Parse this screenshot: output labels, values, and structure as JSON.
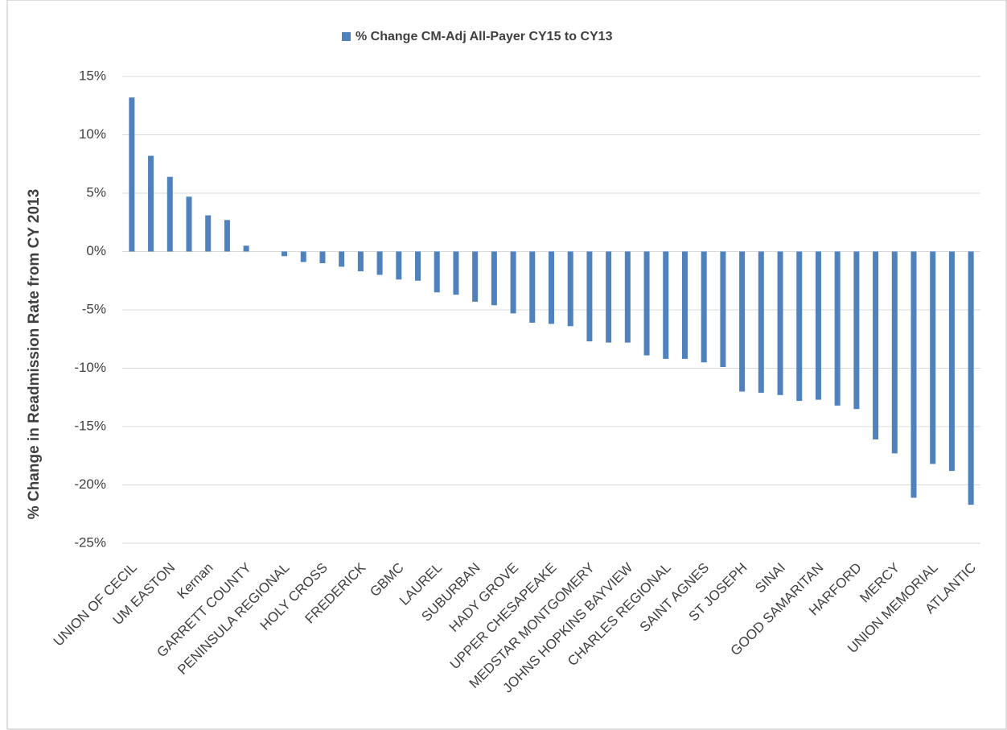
{
  "chart_data": {
    "type": "bar",
    "y_label": "% Change in Readmission Rate from CY 2013",
    "categories": [
      "UNION OF CECIL",
      null,
      "UM EASTON",
      null,
      "Kernan",
      null,
      "GARRETT COUNTY",
      null,
      "PENINSULA REGIONAL",
      null,
      "HOLY CROSS",
      null,
      "FREDERICK",
      null,
      "GBMC",
      null,
      "LAUREL",
      null,
      "SUBURBAN",
      null,
      "HADY GROVE",
      null,
      "UPPER CHESAPEAKE",
      null,
      "MEDSTAR MONTGOMERY",
      null,
      "JOHNS HOPKINS BAYVIEW",
      null,
      "CHARLES REGIONAL",
      null,
      "SAINT AGNES",
      null,
      "ST JOSEPH",
      null,
      "SINAI",
      null,
      "GOOD SAMARITAN",
      null,
      "HARFORD",
      null,
      "MERCY",
      null,
      "UNION MEMORIAL",
      null,
      "ATLANTIC"
    ],
    "series": [
      {
        "name": "% Change CM-Adj All-Payer CY15 to CY13",
        "color": "#4f81bd",
        "values": [
          13.2,
          8.2,
          6.4,
          4.7,
          3.1,
          2.7,
          0.5,
          0,
          -0.4,
          -0.9,
          -1.0,
          -1.3,
          -1.7,
          -2.0,
          -2.4,
          -2.5,
          -3.5,
          -3.7,
          -4.3,
          -4.6,
          -5.3,
          -6.1,
          -6.2,
          -6.4,
          -7.7,
          -7.8,
          -7.8,
          -8.9,
          -9.2,
          -9.2,
          -9.5,
          -9.9,
          -12.0,
          -12.1,
          -12.3,
          -12.8,
          -12.7,
          -13.2,
          -13.5,
          -16.1,
          -17.3,
          -21.1,
          -18.2,
          -18.8,
          -21.7
        ]
      }
    ],
    "ylim": [
      -25,
      15
    ],
    "yticks": [
      {
        "value": -25,
        "label": "-25%"
      },
      {
        "value": -20,
        "label": "-20%"
      },
      {
        "value": -15,
        "label": "-15%"
      },
      {
        "value": -10,
        "label": "-10%"
      },
      {
        "value": -5,
        "label": "-5%"
      },
      {
        "value": 0,
        "label": "0%"
      },
      {
        "value": 5,
        "label": "5%"
      },
      {
        "value": 10,
        "label": "10%"
      },
      {
        "value": 15,
        "label": "15%"
      }
    ],
    "grid": true,
    "legend": "top"
  }
}
